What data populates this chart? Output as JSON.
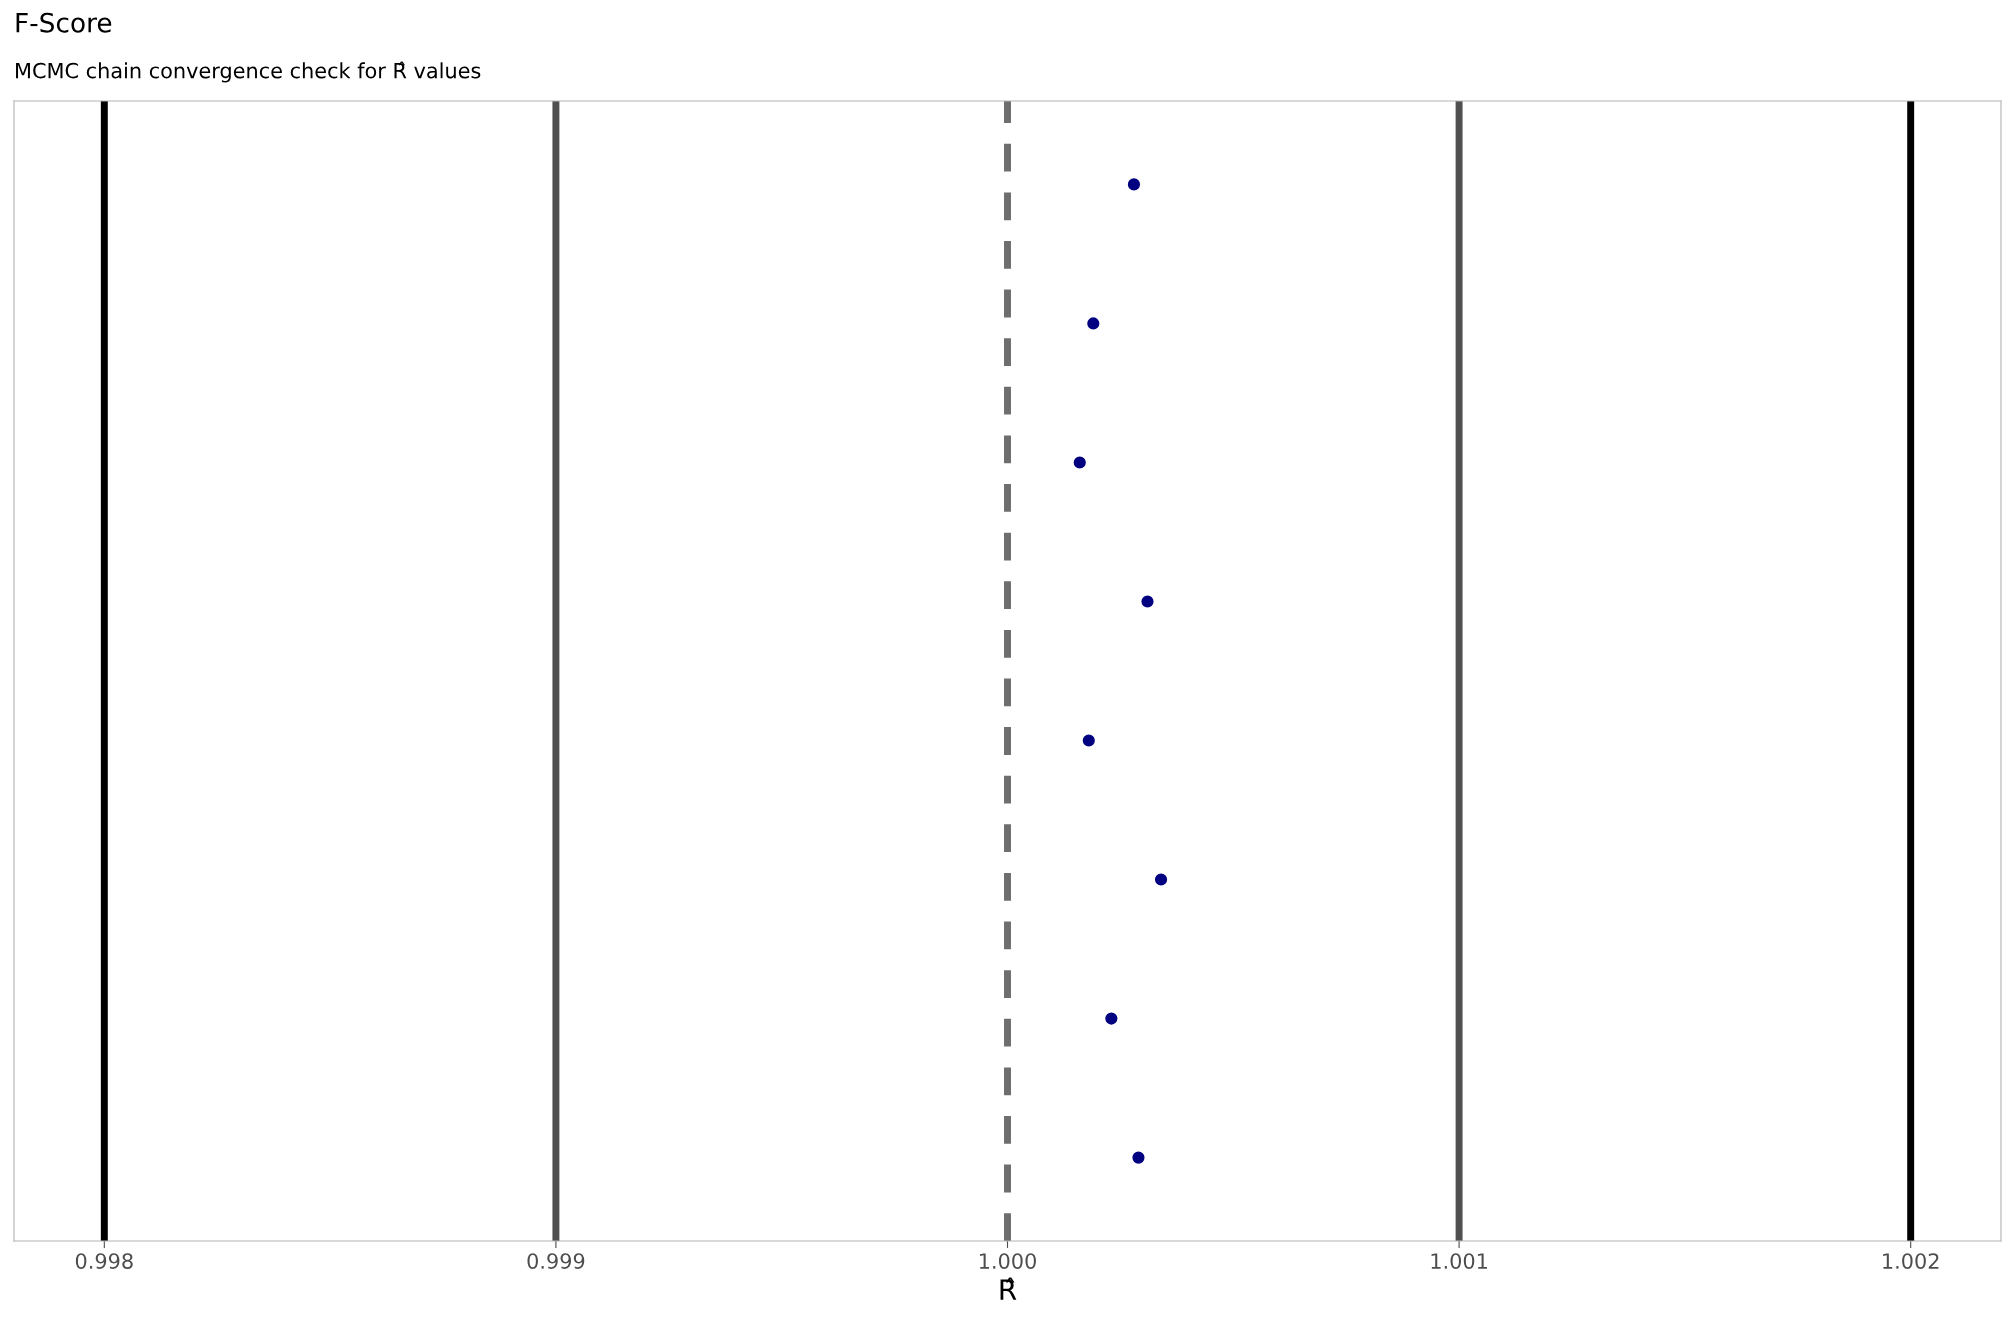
{
  "chart_data": {
    "type": "scatter",
    "title": "F-Score",
    "subtitle": "MCMC chain convergence check for R̂ values",
    "xlabel": "R̂",
    "orientation": "horizontal",
    "categories": [
      null,
      null,
      null,
      null,
      null,
      null,
      null,
      null
    ],
    "series": [
      {
        "color": "#000080",
        "values": [
          1.00028,
          1.00019,
          1.00016,
          1.00031,
          1.00018,
          1.00034,
          1.00023,
          1.00029
        ]
      }
    ],
    "xlim": [
      0.9978,
      1.0022
    ],
    "xticks": [
      {
        "value": 0.998,
        "label": "0.998"
      },
      {
        "value": 0.999,
        "label": "0.999"
      },
      {
        "value": 1.0,
        "label": "1.000"
      },
      {
        "value": 1.001,
        "label": "1.001"
      },
      {
        "value": 1.002,
        "label": "1.002"
      }
    ],
    "ref_lines": [
      {
        "axis": "x",
        "value": 0.998,
        "color": "#000000",
        "line_style": "solid"
      },
      {
        "axis": "x",
        "value": 0.999,
        "color": "#505050",
        "line_style": "solid"
      },
      {
        "axis": "x",
        "value": 1.0,
        "color": "#6e6e6e",
        "line_style": "dashed"
      },
      {
        "axis": "x",
        "value": 1.001,
        "color": "#505050",
        "line_style": "solid"
      },
      {
        "axis": "x",
        "value": 1.002,
        "color": "#000000",
        "line_style": "solid"
      }
    ],
    "marker": "circle",
    "grid": false,
    "tick_labels": "x"
  }
}
